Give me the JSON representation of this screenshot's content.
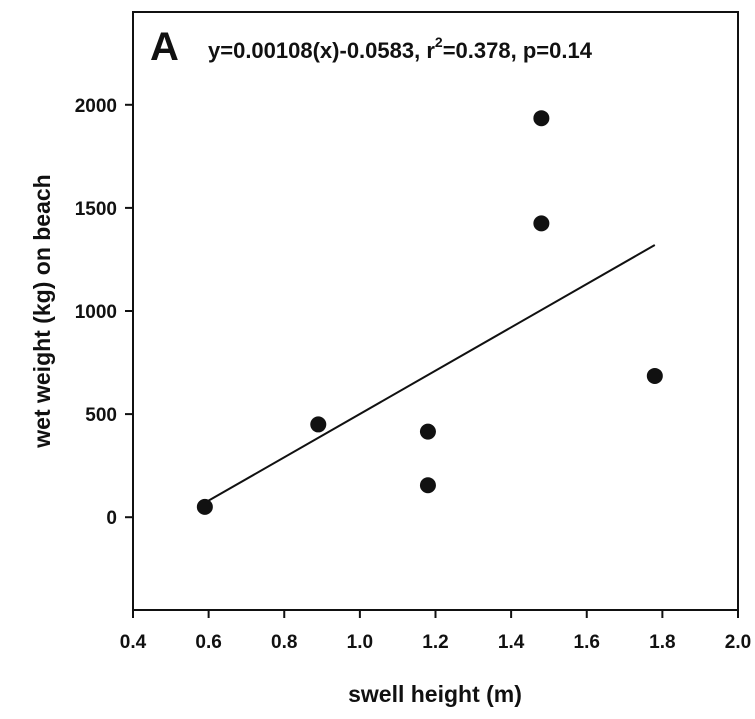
{
  "chart_data": {
    "type": "scatter",
    "panel_label": "A",
    "annotation": {
      "prefix": "y=0.00108(x)-0.0583, r",
      "superscript": "2",
      "suffix": "=0.378, p=0.14"
    },
    "xlabel": "swell height (m)",
    "ylabel": "wet weight (kg) on beach",
    "xlim": [
      0.4,
      2.0
    ],
    "ylim": [
      -450,
      2450
    ],
    "xticks": [
      "0.4",
      "0.6",
      "0.8",
      "1.0",
      "1.2",
      "1.4",
      "1.6",
      "1.8",
      "2.0"
    ],
    "yticks": [
      "0",
      "500",
      "1000",
      "1500",
      "2000"
    ],
    "points": [
      {
        "x": 0.59,
        "y": 50
      },
      {
        "x": 0.89,
        "y": 450
      },
      {
        "x": 1.18,
        "y": 415
      },
      {
        "x": 1.18,
        "y": 155
      },
      {
        "x": 1.48,
        "y": 1935
      },
      {
        "x": 1.48,
        "y": 1425
      },
      {
        "x": 1.78,
        "y": 685
      }
    ],
    "fit_line": {
      "x": [
        0.59,
        1.78
      ],
      "y": [
        70,
        1320
      ]
    },
    "grid": false,
    "legend": "none"
  }
}
